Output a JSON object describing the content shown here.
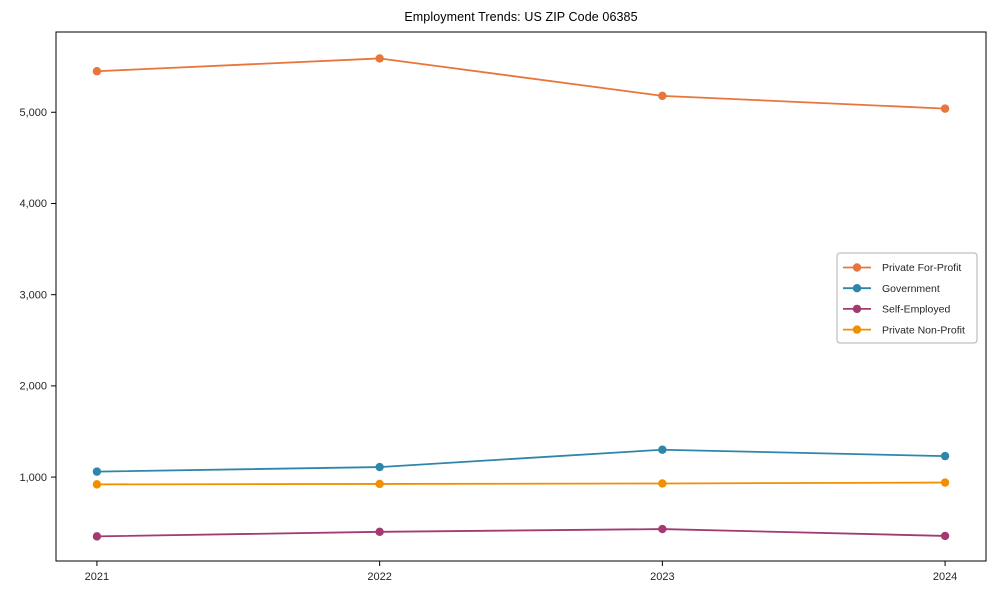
{
  "chart_data": {
    "type": "line",
    "title": "Employment Trends: US ZIP Code 06385",
    "xlabel": "",
    "ylabel": "",
    "x": [
      2021,
      2022,
      2023,
      2024
    ],
    "x_tick_labels": [
      "2021",
      "2022",
      "2023",
      "2024"
    ],
    "series": [
      {
        "name": "Private For-Profit",
        "color": "#E8763C",
        "values": [
          5450,
          5590,
          5180,
          5040
        ]
      },
      {
        "name": "Government",
        "color": "#2F86AB",
        "values": [
          1060,
          1110,
          1300,
          1230
        ]
      },
      {
        "name": "Self-Employed",
        "color": "#A23B72",
        "values": [
          350,
          400,
          430,
          355
        ]
      },
      {
        "name": "Private Non-Profit",
        "color": "#F18F01",
        "values": [
          920,
          925,
          930,
          940
        ]
      }
    ],
    "yticks": [
      1000,
      2000,
      3000,
      4000,
      5000
    ],
    "ytick_labels": [
      "1,000",
      "2,000",
      "3,000",
      "4,000",
      "5,000"
    ],
    "ylim": [
      80,
      5880
    ],
    "grid": false,
    "legend_position": "center right",
    "marker": "circle",
    "spine_color": "#000000",
    "legend_border_color": "#b0b0b0",
    "background_color": "#ffffff"
  }
}
